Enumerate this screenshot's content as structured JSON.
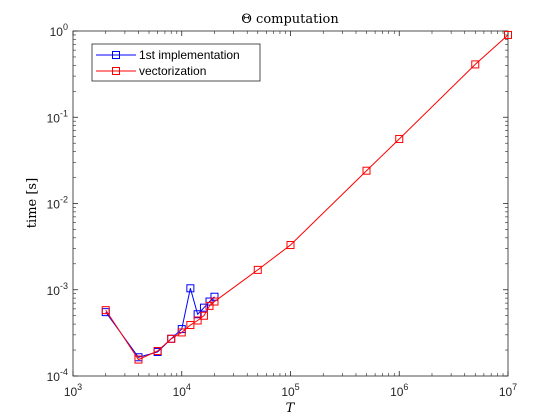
{
  "chart_data": {
    "type": "line",
    "title": "Θ computation",
    "xlabel": "T",
    "ylabel": "time [s]",
    "xscale": "log",
    "yscale": "log",
    "xlim": [
      1000,
      10000000
    ],
    "ylim": [
      0.0001,
      1
    ],
    "grid": false,
    "legend_position": "top-left",
    "x_ticks": [
      {
        "value": 1000,
        "base": "10",
        "exp": "3"
      },
      {
        "value": 10000,
        "base": "10",
        "exp": "4"
      },
      {
        "value": 100000,
        "base": "10",
        "exp": "5"
      },
      {
        "value": 1000000,
        "base": "10",
        "exp": "6"
      },
      {
        "value": 10000000,
        "base": "10",
        "exp": "7"
      }
    ],
    "y_ticks": [
      {
        "value": 0.0001,
        "base": "10",
        "exp": "-4"
      },
      {
        "value": 0.001,
        "base": "10",
        "exp": "-3"
      },
      {
        "value": 0.01,
        "base": "10",
        "exp": "-2"
      },
      {
        "value": 0.1,
        "base": "10",
        "exp": "-1"
      },
      {
        "value": 1,
        "base": "10",
        "exp": "0"
      }
    ],
    "series": [
      {
        "name": "1st implementation",
        "color": "#0000ff",
        "marker": "square",
        "x": [
          2000,
          4000,
          6000,
          8000,
          10000,
          12000,
          14000,
          16000,
          18000,
          20000
        ],
        "y": [
          0.00055,
          0.000165,
          0.00019,
          0.00027,
          0.00035,
          0.00104,
          0.00052,
          0.00062,
          0.00073,
          0.00083
        ]
      },
      {
        "name": "vectorization",
        "color": "#ff0000",
        "marker": "square",
        "x": [
          2000,
          4000,
          6000,
          8000,
          10000,
          12000,
          14000,
          16000,
          18000,
          20000,
          50000,
          100000,
          500000,
          1000000,
          5000000,
          10000000
        ],
        "y": [
          0.00058,
          0.000155,
          0.000195,
          0.00027,
          0.00032,
          0.00039,
          0.00044,
          0.0005,
          0.00065,
          0.00073,
          0.0017,
          0.0033,
          0.024,
          0.056,
          0.41,
          0.9
        ]
      }
    ]
  }
}
